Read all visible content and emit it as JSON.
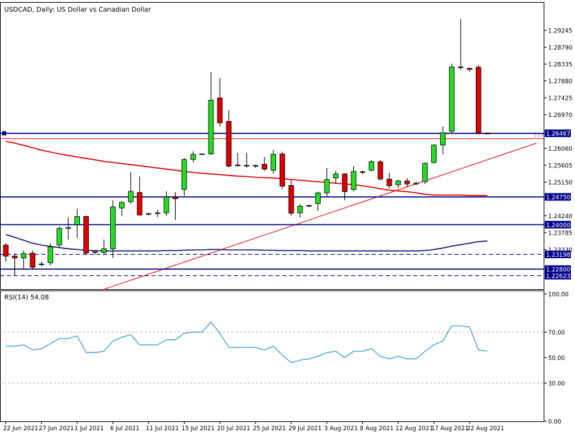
{
  "header": {
    "title": "USDCAD, Daily:  US Dollar vs Canadian Dollar",
    "rsi_label": "RSI(14) 54.08"
  },
  "colors": {
    "bull": "#22dd22",
    "bear": "#e00000",
    "ma_fast": "#e00000",
    "ma_slow": "#1a1a6e",
    "level": "#00008b",
    "rsi": "#3399dd",
    "grid": "#cccccc",
    "tag_bg": "#00008b"
  },
  "chart_data": [
    {
      "type": "candlestick",
      "title": "USDCAD, Daily:  US Dollar vs Canadian Dollar",
      "price_axis": {
        "ylim": [
          1.2226,
          1.2988
        ],
        "ticks": [
          "1.29245",
          "1.28790",
          "1.28335",
          "1.27880",
          "1.27425",
          "1.26970",
          "1.26060",
          "1.25605",
          "1.25150",
          "1.24240",
          "1.23785",
          "1.23330"
        ]
      },
      "date_ticks": [
        {
          "i": 0,
          "label": "22 Jun 2021"
        },
        {
          "i": 4,
          "label": "27 Jun 2021"
        },
        {
          "i": 8,
          "label": "1 Jul 2021"
        },
        {
          "i": 12,
          "label": "6 Jul 2021"
        },
        {
          "i": 16,
          "label": "11 Jul 2021"
        },
        {
          "i": 20,
          "label": "15 Jul 2021"
        },
        {
          "i": 24,
          "label": "20 Jul 2021"
        },
        {
          "i": 28,
          "label": "25 Jul 2021"
        },
        {
          "i": 32,
          "label": "29 Jul 2021"
        },
        {
          "i": 36,
          "label": "3 Aug 2021"
        },
        {
          "i": 40,
          "label": "8 Aug 2021"
        },
        {
          "i": 44,
          "label": "12 Aug 2021"
        },
        {
          "i": 48,
          "label": "17 Aug 2021"
        },
        {
          "i": 52,
          "label": "22 Aug 2021"
        }
      ],
      "candles": [
        {
          "o": 1.2345,
          "h": 1.235,
          "l": 1.23,
          "c": 1.2315
        },
        {
          "o": 1.2315,
          "h": 1.2322,
          "l": 1.2262,
          "c": 1.231
        },
        {
          "o": 1.231,
          "h": 1.233,
          "l": 1.228,
          "c": 1.2322
        },
        {
          "o": 1.2323,
          "h": 1.233,
          "l": 1.2278,
          "c": 1.2285
        },
        {
          "o": 1.2292,
          "h": 1.23,
          "l": 1.2287,
          "c": 1.2294
        },
        {
          "o": 1.2297,
          "h": 1.235,
          "l": 1.229,
          "c": 1.234
        },
        {
          "o": 1.2345,
          "h": 1.2395,
          "l": 1.2338,
          "c": 1.239
        },
        {
          "o": 1.239,
          "h": 1.242,
          "l": 1.236,
          "c": 1.2392
        },
        {
          "o": 1.24,
          "h": 1.2443,
          "l": 1.2364,
          "c": 1.2422
        },
        {
          "o": 1.2422,
          "h": 1.2425,
          "l": 1.2318,
          "c": 1.2323
        },
        {
          "o": 1.2327,
          "h": 1.2328,
          "l": 1.2319,
          "c": 1.2325
        },
        {
          "o": 1.2325,
          "h": 1.236,
          "l": 1.2318,
          "c": 1.2335
        },
        {
          "o": 1.2335,
          "h": 1.2466,
          "l": 1.231,
          "c": 1.2448
        },
        {
          "o": 1.2445,
          "h": 1.2463,
          "l": 1.2423,
          "c": 1.246
        },
        {
          "o": 1.2462,
          "h": 1.2542,
          "l": 1.2456,
          "c": 1.249
        },
        {
          "o": 1.2487,
          "h": 1.253,
          "l": 1.2425,
          "c": 1.2426
        },
        {
          "o": 1.2428,
          "h": 1.2432,
          "l": 1.2424,
          "c": 1.243
        },
        {
          "o": 1.243,
          "h": 1.244,
          "l": 1.242,
          "c": 1.2432
        },
        {
          "o": 1.2432,
          "h": 1.249,
          "l": 1.2424,
          "c": 1.2475
        },
        {
          "o": 1.2475,
          "h": 1.2488,
          "l": 1.2413,
          "c": 1.247
        },
        {
          "o": 1.2495,
          "h": 1.258,
          "l": 1.2478,
          "c": 1.2576
        },
        {
          "o": 1.2576,
          "h": 1.2598,
          "l": 1.2569,
          "c": 1.259
        },
        {
          "o": 1.259,
          "h": 1.2592,
          "l": 1.2588,
          "c": 1.2591
        },
        {
          "o": 1.2591,
          "h": 1.2812,
          "l": 1.2588,
          "c": 1.2736
        },
        {
          "o": 1.2742,
          "h": 1.2796,
          "l": 1.2665,
          "c": 1.2675
        },
        {
          "o": 1.2679,
          "h": 1.2709,
          "l": 1.2555,
          "c": 1.2558
        },
        {
          "o": 1.2561,
          "h": 1.2594,
          "l": 1.2557,
          "c": 1.2559
        },
        {
          "o": 1.256,
          "h": 1.2594,
          "l": 1.2554,
          "c": 1.2558
        },
        {
          "o": 1.2558,
          "h": 1.2563,
          "l": 1.2553,
          "c": 1.256
        },
        {
          "o": 1.2563,
          "h": 1.2583,
          "l": 1.2545,
          "c": 1.255
        },
        {
          "o": 1.2547,
          "h": 1.2602,
          "l": 1.2537,
          "c": 1.259
        },
        {
          "o": 1.2591,
          "h": 1.2597,
          "l": 1.2497,
          "c": 1.2504
        },
        {
          "o": 1.2506,
          "h": 1.252,
          "l": 1.2424,
          "c": 1.2431
        },
        {
          "o": 1.2432,
          "h": 1.2455,
          "l": 1.2419,
          "c": 1.245
        },
        {
          "o": 1.245,
          "h": 1.2454,
          "l": 1.2447,
          "c": 1.2452
        },
        {
          "o": 1.2457,
          "h": 1.2489,
          "l": 1.2437,
          "c": 1.2486
        },
        {
          "o": 1.2486,
          "h": 1.2553,
          "l": 1.2475,
          "c": 1.2522
        },
        {
          "o": 1.2526,
          "h": 1.2545,
          "l": 1.251,
          "c": 1.2537
        },
        {
          "o": 1.2537,
          "h": 1.2539,
          "l": 1.2466,
          "c": 1.2489
        },
        {
          "o": 1.2495,
          "h": 1.2558,
          "l": 1.249,
          "c": 1.2544
        },
        {
          "o": 1.2541,
          "h": 1.2546,
          "l": 1.2536,
          "c": 1.2543
        },
        {
          "o": 1.2547,
          "h": 1.2575,
          "l": 1.2544,
          "c": 1.257
        },
        {
          "o": 1.257,
          "h": 1.2575,
          "l": 1.252,
          "c": 1.2523
        },
        {
          "o": 1.2523,
          "h": 1.254,
          "l": 1.2498,
          "c": 1.2505
        },
        {
          "o": 1.2508,
          "h": 1.2521,
          "l": 1.2499,
          "c": 1.2518
        },
        {
          "o": 1.2518,
          "h": 1.2526,
          "l": 1.2502,
          "c": 1.251
        },
        {
          "o": 1.251,
          "h": 1.2516,
          "l": 1.2507,
          "c": 1.2512
        },
        {
          "o": 1.2516,
          "h": 1.2568,
          "l": 1.251,
          "c": 1.2566
        },
        {
          "o": 1.2568,
          "h": 1.2617,
          "l": 1.2565,
          "c": 1.2615
        },
        {
          "o": 1.2615,
          "h": 1.2665,
          "l": 1.259,
          "c": 1.2648
        },
        {
          "o": 1.2652,
          "h": 1.2835,
          "l": 1.2645,
          "c": 1.2826
        },
        {
          "o": 1.2826,
          "h": 1.2955,
          "l": 1.2818,
          "c": 1.2825
        },
        {
          "o": 1.2822,
          "h": 1.2825,
          "l": 1.2813,
          "c": 1.2819
        },
        {
          "o": 1.2825,
          "h": 1.2832,
          "l": 1.2643,
          "c": 1.2648
        },
        {
          "o": 1.2647,
          "h": 1.2649,
          "l": 1.2644,
          "c": 1.2646
        }
      ],
      "ma_fast": [
        1.2625,
        1.262,
        1.2614,
        1.2608,
        1.2601,
        1.2596,
        1.2591,
        1.2587,
        1.2583,
        1.2579,
        1.2575,
        1.2571,
        1.2568,
        1.2565,
        1.2562,
        1.2559,
        1.2556,
        1.2553,
        1.255,
        1.2547,
        1.2544,
        1.2541,
        1.2539,
        1.2537,
        1.2535,
        1.2533,
        1.2531,
        1.253,
        1.2528,
        1.2527,
        1.2526,
        1.2524,
        1.2522,
        1.252,
        1.2518,
        1.2516,
        1.2514,
        1.2512,
        1.251,
        1.2508,
        1.2505,
        1.2501,
        1.2497,
        1.2493,
        1.2491,
        1.2489,
        1.2486,
        1.2482,
        1.248,
        1.248,
        1.248,
        1.248,
        1.2479,
        1.2479,
        1.2479
      ],
      "ma_slow": [
        1.2373,
        1.2366,
        1.2358,
        1.235,
        1.2345,
        1.2341,
        1.2338,
        1.2335,
        1.2333,
        1.2331,
        1.233,
        1.2329,
        1.2329,
        1.2329,
        1.2329,
        1.2329,
        1.2329,
        1.2329,
        1.233,
        1.233,
        1.2331,
        1.2332,
        1.2332,
        1.2333,
        1.2333,
        1.2332,
        1.2332,
        1.2332,
        1.2332,
        1.2331,
        1.2331,
        1.233,
        1.233,
        1.233,
        1.2329,
        1.2329,
        1.2329,
        1.2329,
        1.2329,
        1.2329,
        1.2329,
        1.2329,
        1.2329,
        1.2329,
        1.2329,
        1.2329,
        1.2329,
        1.233,
        1.2333,
        1.2337,
        1.2342,
        1.2346,
        1.235,
        1.2354,
        1.2356
      ],
      "trendline": {
        "from": {
          "i": 10.8,
          "price": 1.2224
        },
        "to": {
          "i": 59.5,
          "price": 1.262
        }
      },
      "levels": [
        {
          "price": 1.26467,
          "label": "1.26467",
          "style": "solid",
          "tag": true
        },
        {
          "price": 1.2475,
          "label": "1.24750",
          "style": "solid",
          "tag": true
        },
        {
          "price": 1.24,
          "label": "1.24000",
          "style": "solid",
          "tag": true
        },
        {
          "price": 1.23198,
          "label": "1.23198",
          "style": "dashed",
          "tag": true
        },
        {
          "price": 1.228,
          "label": "1.22800",
          "style": "solid",
          "tag": true
        },
        {
          "price": 1.22623,
          "label": "1.22623",
          "style": "dashed",
          "tag": true
        }
      ],
      "thin_level": {
        "price": 1.2632,
        "text": "23.6"
      }
    },
    {
      "type": "line",
      "title": "RSI(14) 54.08",
      "ylim": [
        0,
        100
      ],
      "yticks": [
        "100.00",
        "70.00",
        "50.00",
        "30.00",
        "0.00"
      ],
      "grid_levels": [
        70,
        30
      ],
      "values": [
        59,
        59,
        60,
        56,
        57,
        61,
        65,
        65,
        67,
        54,
        54,
        55,
        63,
        66,
        68,
        60,
        60,
        60,
        64,
        64,
        69,
        70,
        70,
        78,
        69,
        58,
        58,
        58,
        58,
        56,
        59,
        52,
        46,
        48,
        49,
        51,
        54,
        55,
        50,
        55,
        55,
        57,
        51,
        49,
        51,
        49,
        49,
        55,
        60,
        63,
        75,
        75,
        74,
        56,
        55
      ]
    }
  ]
}
